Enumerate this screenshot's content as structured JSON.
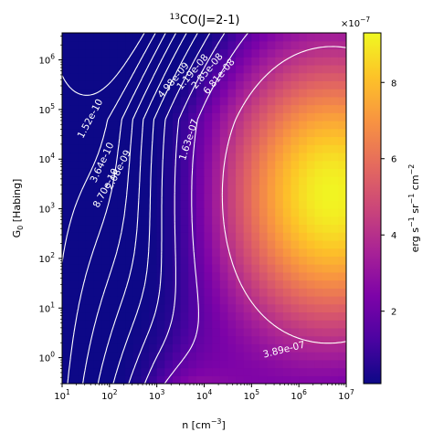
{
  "chart_data": {
    "type": "heatmap",
    "title": "(J=2-1)",
    "title_sup": "13",
    "title_species": "CO",
    "xlabel": "n [cm",
    "xlabel_sup": "−3",
    "xlabel_end": "]",
    "ylabel": "G",
    "ylabel_sub": "0",
    "ylabel_end": " [Habing]",
    "x_scale": "log",
    "y_scale": "log",
    "xlim": [
      10,
      10000000
    ],
    "ylim": [
      0.3,
      3500000
    ],
    "x_ticks": [
      {
        "value": 10,
        "base": "10",
        "exp": "1"
      },
      {
        "value": 100,
        "base": "10",
        "exp": "2"
      },
      {
        "value": 1000,
        "base": "10",
        "exp": "3"
      },
      {
        "value": 10000,
        "base": "10",
        "exp": "4"
      },
      {
        "value": 100000,
        "base": "10",
        "exp": "5"
      },
      {
        "value": 1000000,
        "base": "10",
        "exp": "6"
      },
      {
        "value": 10000000,
        "base": "10",
        "exp": "7"
      }
    ],
    "y_ticks": [
      {
        "value": 1,
        "base": "10",
        "exp": "0"
      },
      {
        "value": 10,
        "base": "10",
        "exp": "1"
      },
      {
        "value": 100,
        "base": "10",
        "exp": "2"
      },
      {
        "value": 1000,
        "base": "10",
        "exp": "3"
      },
      {
        "value": 10000,
        "base": "10",
        "exp": "4"
      },
      {
        "value": 100000,
        "base": "10",
        "exp": "5"
      },
      {
        "value": 1000000,
        "base": "10",
        "exp": "6"
      }
    ],
    "colormap": "plasma",
    "colorbar": {
      "min": 1e-08,
      "max": 9.3e-07,
      "multiplier_base": "×10",
      "multiplier_exp": "−7",
      "ticks": [
        {
          "value": 2e-07,
          "label": "2"
        },
        {
          "value": 4e-07,
          "label": "4"
        },
        {
          "value": 6e-07,
          "label": "6"
        },
        {
          "value": 8e-07,
          "label": "8"
        }
      ],
      "label_parts": [
        "erg s",
        "−1",
        " sr",
        "−1",
        " cm",
        "−2"
      ]
    },
    "contour_levels": [
      {
        "value": 1.52e-10,
        "label": "1.52e-10"
      },
      {
        "value": 3.64e-10,
        "label": "3.64e-10"
      },
      {
        "value": 8.7e-10,
        "label": "8.70e-10"
      },
      {
        "value": 2.08e-09,
        "label": "2.08e-09"
      },
      {
        "value": 4.98e-09,
        "label": "4.98e-09"
      },
      {
        "value": 1.19e-08,
        "label": "1.19e-08"
      },
      {
        "value": 2.85e-08,
        "label": "2.85e-08"
      },
      {
        "value": 6.81e-08,
        "label": "6.81e-08"
      },
      {
        "value": 1.63e-07,
        "label": "1.63e-07"
      },
      {
        "value": 3.89e-07,
        "label": "3.89e-07"
      }
    ],
    "peak": {
      "n": 5000000,
      "G0": 2000,
      "value": 9.2e-07
    },
    "grid": false,
    "colorbar_position": "right"
  }
}
